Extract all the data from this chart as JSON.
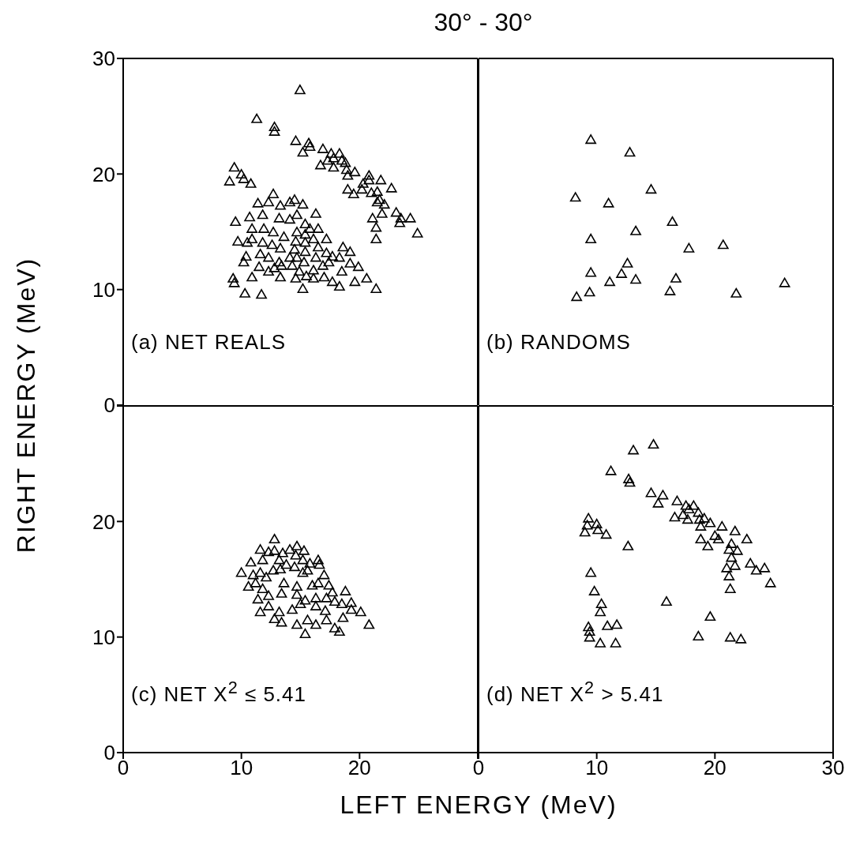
{
  "chart_data": [
    {
      "type": "scatter",
      "title": "30° - 30°",
      "ylabel": "RIGHT ENERGY (MeV)",
      "annotations": [
        "(a) NET REALS"
      ],
      "marker": "triangle",
      "xlim": [
        0,
        30
      ],
      "ylim": [
        0,
        30
      ],
      "xticks": [
        10,
        20
      ],
      "yticks": [
        0,
        10,
        20,
        30
      ],
      "tick_labels": "y",
      "series": [
        {
          "color": "#000000",
          "x": [
            14.96,
            11.3,
            12.8,
            12.8,
            14.6,
            15.7,
            15.8,
            15.2,
            16.9,
            17.6,
            18.3,
            17.8,
            18.5,
            18.8,
            17.3,
            16.7,
            17.8,
            18.9,
            19.6,
            19.0,
            20.8,
            20.8,
            21.8,
            22.7,
            20.3,
            20.2,
            19.0,
            19.5,
            21.0,
            21.5,
            21.7,
            22.1,
            21.5,
            21.9,
            21.1,
            23.1,
            23.5,
            23.4,
            24.3,
            21.4,
            24.9,
            21.4,
            9.4,
            9.0,
            10.0,
            10.2,
            10.8,
            12.7,
            11.4,
            12.3,
            13.3,
            14.5,
            14.1,
            15.2,
            16.3,
            9.5,
            10.7,
            11.8,
            13.2,
            14.1,
            14.7,
            15.4,
            15.8,
            16.5,
            10.9,
            11.9,
            12.7,
            13.6,
            14.7,
            15.4,
            16.1,
            17.2,
            16.5,
            9.7,
            10.5,
            10.9,
            11.8,
            12.6,
            13.3,
            14.6,
            15.4,
            14.5,
            15.4,
            17.2,
            17.7,
            18.6,
            19.2,
            10.4,
            11.6,
            12.3,
            13.2,
            14.1,
            14.7,
            15.3,
            16.3,
            10.2,
            11.5,
            12.3,
            12.8,
            13.4,
            14.3,
            14.9,
            15.5,
            16.1,
            16.9,
            17.4,
            18.3,
            19.2,
            19.9,
            18.5,
            9.3,
            9.4,
            10.9,
            13.3,
            14.6,
            16.1,
            17.0,
            17.7,
            18.3,
            19.6,
            20.6,
            21.4,
            10.3,
            11.7,
            15.2
          ],
          "values": [
            27.2,
            24.7,
            24.0,
            23.6,
            22.8,
            22.6,
            22.3,
            21.8,
            22.1,
            21.7,
            21.7,
            21.3,
            21.1,
            20.9,
            21.1,
            20.7,
            20.5,
            20.3,
            20.1,
            19.8,
            19.8,
            19.4,
            19.4,
            18.7,
            19.1,
            18.6,
            18.6,
            18.2,
            18.3,
            18.4,
            17.7,
            17.3,
            17.5,
            16.5,
            16.1,
            16.6,
            16.1,
            15.7,
            16.1,
            15.3,
            14.8,
            14.3,
            20.5,
            19.3,
            19.9,
            19.5,
            19.1,
            18.2,
            17.4,
            17.5,
            17.2,
            17.7,
            17.5,
            17.3,
            16.5,
            15.8,
            16.2,
            16.4,
            16.1,
            16.0,
            16.4,
            15.6,
            15.2,
            15.2,
            15.2,
            15.2,
            14.9,
            14.5,
            14.9,
            14.7,
            14.3,
            14.3,
            13.6,
            14.1,
            14.0,
            14.3,
            14.0,
            13.8,
            13.5,
            14.1,
            14.0,
            13.4,
            13.2,
            13.1,
            12.8,
            13.6,
            13.2,
            12.8,
            13.0,
            12.7,
            12.3,
            12.7,
            12.7,
            12.3,
            12.7,
            12.3,
            11.9,
            11.5,
            11.8,
            12.0,
            12.0,
            11.5,
            11.1,
            11.6,
            12.0,
            12.3,
            12.7,
            12.2,
            11.9,
            11.5,
            10.9,
            10.5,
            11.0,
            11.0,
            10.9,
            10.9,
            11.0,
            10.6,
            10.2,
            10.6,
            10.9,
            10.0,
            9.6,
            9.5,
            10.0
          ]
        }
      ]
    },
    {
      "type": "scatter",
      "annotations": [
        "(b) RANDOMS"
      ],
      "marker": "triangle",
      "xlim": [
        0,
        30
      ],
      "ylim": [
        0,
        30
      ],
      "xticks": [
        10,
        20
      ],
      "yticks": [
        10,
        20
      ],
      "tick_labels": false,
      "series": [
        {
          "color": "#000000",
          "x": [
            9.5,
            12.8,
            14.6,
            8.2,
            11.0,
            16.4,
            13.3,
            9.5,
            17.8,
            20.7,
            12.6,
            9.5,
            12.1,
            11.1,
            13.3,
            16.7,
            25.9,
            9.4,
            16.2,
            21.8,
            8.3
          ],
          "values": [
            22.9,
            21.8,
            18.6,
            17.9,
            17.4,
            15.8,
            15.0,
            14.3,
            13.5,
            13.8,
            12.2,
            11.4,
            11.3,
            10.6,
            10.8,
            10.9,
            10.5,
            9.7,
            9.8,
            9.6,
            9.3
          ]
        }
      ]
    },
    {
      "type": "scatter",
      "xlabel": "LEFT ENERGY (MeV)",
      "annotations": [
        "(c) NET X$^{2}$ ≤ 5.41"
      ],
      "marker": "triangle",
      "xlim": [
        0,
        30
      ],
      "ylim": [
        0,
        30
      ],
      "xticks": [
        0,
        10,
        20,
        {
          "value": 30,
          "label": null
        }
      ],
      "yticks": [
        0,
        10,
        20,
        {
          "value": 30,
          "label": null
        }
      ],
      "series": [
        {
          "color": "#000000",
          "x": [
            12.8,
            11.6,
            12.3,
            12.8,
            13.5,
            14.1,
            14.7,
            15.3,
            14.6,
            10.8,
            11.8,
            13.2,
            13.8,
            14.5,
            15.2,
            15.8,
            16.5,
            16.6,
            10.0,
            11.0,
            11.6,
            12.1,
            12.7,
            13.3,
            15.2,
            15.6,
            17.0,
            10.6,
            11.2,
            11.8,
            13.6,
            14.7,
            16.0,
            16.5,
            17.4,
            17.7,
            11.4,
            12.3,
            13.4,
            14.7,
            15.4,
            16.3,
            17.2,
            18.8,
            11.6,
            12.3,
            13.2,
            14.3,
            15.0,
            16.3,
            17.1,
            17.9,
            18.5,
            19.3,
            19.3,
            12.8,
            13.4,
            14.7,
            15.6,
            16.3,
            17.2,
            18.6,
            20.1,
            15.4,
            17.9,
            18.3,
            20.8
          ],
          "values": [
            18.4,
            17.5,
            17.3,
            17.4,
            17.2,
            17.5,
            17.8,
            17.4,
            17.0,
            16.4,
            16.6,
            16.6,
            16.2,
            16.0,
            16.6,
            16.3,
            16.6,
            16.2,
            15.5,
            15.3,
            15.5,
            15.1,
            15.7,
            15.8,
            15.5,
            15.7,
            15.3,
            14.3,
            14.6,
            14.1,
            14.6,
            14.3,
            14.4,
            14.6,
            14.4,
            13.8,
            13.2,
            13.5,
            13.7,
            13.6,
            13.1,
            13.3,
            13.3,
            13.9,
            12.1,
            12.6,
            12.1,
            12.3,
            12.8,
            12.6,
            12.2,
            13.0,
            12.8,
            12.9,
            12.3,
            11.5,
            11.2,
            11.0,
            11.4,
            11.0,
            11.4,
            11.6,
            12.1,
            10.2,
            10.7,
            10.4,
            11.0
          ]
        }
      ]
    },
    {
      "type": "scatter",
      "annotations": [
        "(d) NET X$^{2}$ > 5.41"
      ],
      "marker": "triangle",
      "xlim": [
        0,
        30
      ],
      "ylim": [
        0,
        30
      ],
      "xticks": [
        0,
        10,
        20,
        30
      ],
      "yticks": [
        10,
        20
      ],
      "tick_labels": "x",
      "series": [
        {
          "color": "#000000",
          "x": [
            14.8,
            13.1,
            11.2,
            12.7,
            12.8,
            14.6,
            15.6,
            15.2,
            16.8,
            17.55,
            18.2,
            17.8,
            18.6,
            16.6,
            17.3,
            17.7,
            18.7,
            19.1,
            19.6,
            18.8,
            20.6,
            21.7,
            20.0,
            20.3,
            18.8,
            19.4,
            21.4,
            22.7,
            21.2,
            21.9,
            21.4,
            21.0,
            21.7,
            23.0,
            23.5,
            24.2,
            24.7,
            21.2,
            21.3,
            9.3,
            9.2,
            9.0,
            10.0,
            10.1,
            10.8,
            12.65,
            9.5,
            9.8,
            10.4,
            10.3,
            9.3,
            9.4,
            9.4,
            10.9,
            11.7,
            10.3,
            11.6,
            15.9,
            19.6,
            18.6,
            21.3,
            22.2
          ],
          "values": [
            26.6,
            26.1,
            24.3,
            23.6,
            23.3,
            22.4,
            22.2,
            21.5,
            21.7,
            21.3,
            21.3,
            21.0,
            20.7,
            20.3,
            20.5,
            20.1,
            20.1,
            20.2,
            19.8,
            19.5,
            19.5,
            19.1,
            18.7,
            18.4,
            18.4,
            17.8,
            18.0,
            18.4,
            17.5,
            17.4,
            16.8,
            15.9,
            16.1,
            16.3,
            15.7,
            15.9,
            14.6,
            15.2,
            14.1,
            20.2,
            19.6,
            19.0,
            19.7,
            19.2,
            18.8,
            17.8,
            15.5,
            13.9,
            12.8,
            12.1,
            10.8,
            10.4,
            9.9,
            10.9,
            11.0,
            9.4,
            9.4,
            13.0,
            11.7,
            10.0,
            9.9,
            9.75
          ]
        }
      ]
    }
  ]
}
